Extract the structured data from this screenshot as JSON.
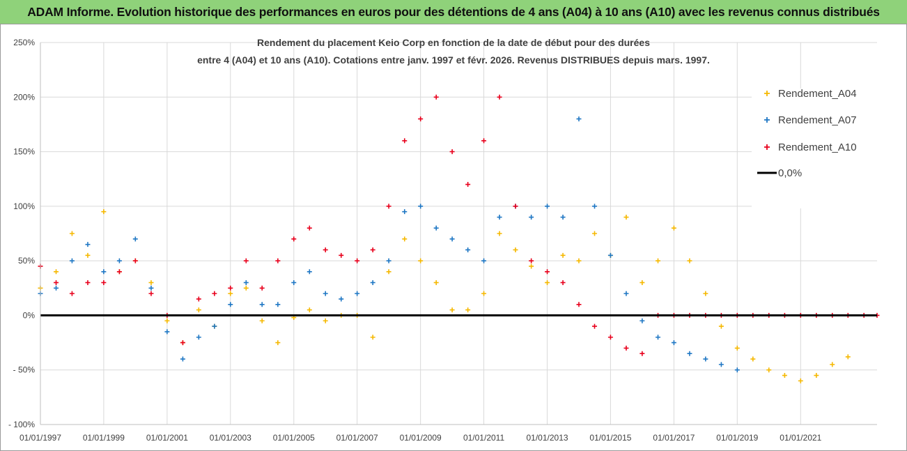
{
  "banner": {
    "title": "ADAM Informe. Evolution historique des performances en euros pour des détentions de 4 ans (A04) à 10 ans (A10) avec les revenus connus distribués"
  },
  "colors": {
    "banner_bg": "#8fd27a",
    "series_a04": "#f5b800",
    "series_a07": "#1f77c4",
    "series_a10": "#e8001c",
    "zero_line": "#000000",
    "grid": "#d9d9d9"
  },
  "chart_data": {
    "type": "scatter",
    "title_lines": [
      "Rendement du placement Keio Corp en fonction de la date de début pour des durées",
      "entre 4 (A04) et 10 ans (A10). Cotations entre janv. 1997 et févr.  2026. Revenus DISTRIBUES depuis mars. 1997."
    ],
    "xlabel": "",
    "ylabel": "",
    "x_range": [
      "1997-01-01",
      "2023-06-01"
    ],
    "y_range": [
      -100,
      250
    ],
    "y_ticks": [
      250,
      200,
      150,
      100,
      50,
      0,
      -50,
      -100
    ],
    "y_tick_labels": [
      "250%",
      "200%",
      "150%",
      "100%",
      "50%",
      "0%",
      "- 50%",
      "- 100%"
    ],
    "x_tick_labels": [
      "01/01/1997",
      "01/01/1999",
      "01/01/2001",
      "01/01/2003",
      "01/01/2005",
      "01/01/2007",
      "01/01/2009",
      "01/01/2011",
      "01/01/2013",
      "01/01/2015",
      "01/01/2017",
      "01/01/2019",
      "01/01/2021"
    ],
    "x_tick_years": [
      1997,
      1999,
      2001,
      2003,
      2005,
      2007,
      2009,
      2011,
      2013,
      2015,
      2017,
      2019,
      2021
    ],
    "grid": true,
    "legend_position": "top-right",
    "series": [
      {
        "name": "Rendement_A04",
        "color": "#f5b800",
        "x": [
          "1997-01-01",
          "1997-07-01",
          "1998-01-01",
          "1998-07-01",
          "1999-01-01",
          "1999-07-01",
          "2000-01-01",
          "2000-07-01",
          "2001-01-01",
          "2001-07-01",
          "2002-01-01",
          "2002-07-01",
          "2003-01-01",
          "2003-07-01",
          "2004-01-01",
          "2004-07-01",
          "2005-01-01",
          "2005-07-01",
          "2006-01-01",
          "2006-07-01",
          "2007-01-01",
          "2007-07-01",
          "2008-01-01",
          "2008-07-01",
          "2009-01-01",
          "2009-07-01",
          "2010-01-01",
          "2010-07-01",
          "2011-01-01",
          "2011-07-01",
          "2012-01-01",
          "2012-07-01",
          "2013-01-01",
          "2013-07-01",
          "2014-01-01",
          "2014-07-01",
          "2015-01-01",
          "2015-07-01",
          "2016-01-01",
          "2016-07-01",
          "2017-01-01",
          "2017-07-01",
          "2018-01-01",
          "2018-07-01",
          "2019-01-01",
          "2019-07-01",
          "2020-01-01",
          "2020-07-01",
          "2021-01-01",
          "2021-07-01",
          "2022-01-01",
          "2022-07-01"
        ],
        "y": [
          25,
          40,
          75,
          55,
          95,
          40,
          50,
          30,
          -5,
          -25,
          5,
          -10,
          20,
          25,
          -5,
          -25,
          -2,
          5,
          -5,
          0,
          0,
          -20,
          40,
          70,
          50,
          30,
          5,
          5,
          20,
          75,
          60,
          45,
          30,
          55,
          50,
          75,
          55,
          90,
          30,
          50,
          80,
          50,
          20,
          -10,
          -30,
          -40,
          -50,
          -55,
          -60,
          -55,
          -45,
          -38
        ]
      },
      {
        "name": "Rendement_A07",
        "color": "#1f77c4",
        "x": [
          "1997-01-01",
          "1997-07-01",
          "1998-01-01",
          "1998-07-01",
          "1999-01-01",
          "1999-07-01",
          "2000-01-01",
          "2000-07-01",
          "2001-01-01",
          "2001-07-01",
          "2002-01-01",
          "2002-07-01",
          "2003-01-01",
          "2003-07-01",
          "2004-01-01",
          "2004-07-01",
          "2005-01-01",
          "2005-07-01",
          "2006-01-01",
          "2006-07-01",
          "2007-01-01",
          "2007-07-01",
          "2008-01-01",
          "2008-07-01",
          "2009-01-01",
          "2009-07-01",
          "2010-01-01",
          "2010-07-01",
          "2011-01-01",
          "2011-07-01",
          "2012-01-01",
          "2012-07-01",
          "2013-01-01",
          "2013-07-01",
          "2014-01-01",
          "2014-07-01",
          "2015-01-01",
          "2015-07-01",
          "2016-01-01",
          "2016-07-01",
          "2017-01-01",
          "2017-07-01",
          "2018-01-01",
          "2018-07-01",
          "2019-01-01"
        ],
        "y": [
          20,
          25,
          50,
          65,
          40,
          50,
          70,
          25,
          -15,
          -40,
          -20,
          -10,
          10,
          30,
          10,
          10,
          30,
          40,
          20,
          15,
          20,
          30,
          50,
          95,
          100,
          80,
          70,
          60,
          50,
          90,
          100,
          90,
          100,
          90,
          180,
          100,
          55,
          20,
          -5,
          -20,
          -25,
          -35,
          -40,
          -45,
          -50
        ]
      },
      {
        "name": "Rendement_A10",
        "color": "#e8001c",
        "x": [
          "1997-01-01",
          "1997-07-01",
          "1998-01-01",
          "1998-07-01",
          "1999-01-01",
          "1999-07-01",
          "2000-01-01",
          "2000-07-01",
          "2001-01-01",
          "2001-07-01",
          "2002-01-01",
          "2002-07-01",
          "2003-01-01",
          "2003-07-01",
          "2004-01-01",
          "2004-07-01",
          "2005-01-01",
          "2005-07-01",
          "2006-01-01",
          "2006-07-01",
          "2007-01-01",
          "2007-07-01",
          "2008-01-01",
          "2008-07-01",
          "2009-01-01",
          "2009-07-01",
          "2010-01-01",
          "2010-07-01",
          "2011-01-01",
          "2011-07-01",
          "2012-01-01",
          "2012-07-01",
          "2013-01-01",
          "2013-07-01",
          "2014-01-01",
          "2014-07-01",
          "2015-01-01",
          "2015-07-01",
          "2016-01-01",
          "2016-07-01",
          "2017-01-01",
          "2017-07-01",
          "2018-01-01",
          "2018-07-01",
          "2019-01-01",
          "2019-07-01",
          "2020-01-01",
          "2020-07-01",
          "2021-01-01",
          "2021-07-01",
          "2022-01-01",
          "2022-07-01",
          "2023-01-01",
          "2023-06-01"
        ],
        "y": [
          45,
          30,
          20,
          30,
          30,
          40,
          50,
          20,
          0,
          -25,
          15,
          20,
          25,
          50,
          25,
          50,
          70,
          80,
          60,
          55,
          50,
          60,
          100,
          160,
          180,
          200,
          150,
          120,
          160,
          200,
          100,
          50,
          40,
          30,
          10,
          -10,
          -20,
          -30,
          -35,
          0,
          0,
          0,
          0,
          0,
          0,
          0,
          0,
          0,
          0,
          0,
          0,
          0,
          0,
          0
        ]
      },
      {
        "name": "0,0%",
        "color": "#000000",
        "x": [
          "1997-01-01",
          "2023-06-01"
        ],
        "y": [
          0,
          0
        ]
      }
    ]
  }
}
